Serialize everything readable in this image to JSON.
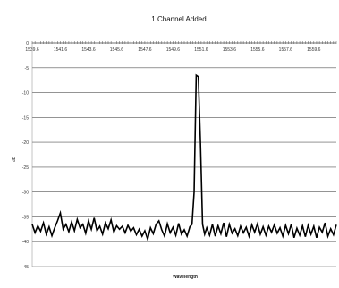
{
  "chart_data": {
    "type": "line",
    "title": "1 Channel Added",
    "xlabel": "Wavelength",
    "ylabel": "dB",
    "xlim": [
      1539.6,
      1561.2
    ],
    "ylim": [
      -45,
      0
    ],
    "xticks": [
      1539.6,
      1541.6,
      1543.6,
      1545.6,
      1547.6,
      1549.6,
      1551.6,
      1553.6,
      1555.6,
      1557.6,
      1559.6
    ],
    "xtick_labels": [
      "1539.6",
      "1541.6",
      "1543.6",
      "1545.6",
      "1547.6",
      "1549.6",
      "1551.6",
      "1553.6",
      "1555.6",
      "1557.6",
      "1559.6"
    ],
    "yticks": [
      0,
      -5,
      -10,
      -15,
      -20,
      -25,
      -30,
      -35,
      -40,
      -45
    ],
    "ytick_labels": [
      "0",
      "-5",
      "-10",
      "-15",
      "-20",
      "-25",
      "-30",
      "-35",
      "-40",
      "-45"
    ],
    "grid": true,
    "series": [
      {
        "color": "#000000",
        "x": [
          1539.6,
          1539.8,
          1540.0,
          1540.2,
          1540.4,
          1540.6,
          1540.8,
          1541.0,
          1541.2,
          1541.4,
          1541.6,
          1541.8,
          1542.0,
          1542.2,
          1542.4,
          1542.6,
          1542.8,
          1543.0,
          1543.2,
          1543.4,
          1543.6,
          1543.8,
          1544.0,
          1544.2,
          1544.4,
          1544.6,
          1544.8,
          1545.0,
          1545.2,
          1545.4,
          1545.6,
          1545.8,
          1546.0,
          1546.2,
          1546.4,
          1546.6,
          1546.8,
          1547.0,
          1547.2,
          1547.4,
          1547.6,
          1547.8,
          1548.0,
          1548.2,
          1548.4,
          1548.6,
          1548.8,
          1549.0,
          1549.2,
          1549.4,
          1549.6,
          1549.8,
          1550.0,
          1550.2,
          1550.4,
          1550.6,
          1550.8,
          1550.95,
          1551.1,
          1551.25,
          1551.4,
          1551.55,
          1551.7,
          1551.85,
          1552.0,
          1552.2,
          1552.4,
          1552.6,
          1552.8,
          1553.0,
          1553.2,
          1553.4,
          1553.6,
          1553.8,
          1554.0,
          1554.2,
          1554.4,
          1554.6,
          1554.8,
          1555.0,
          1555.2,
          1555.4,
          1555.6,
          1555.8,
          1556.0,
          1556.2,
          1556.4,
          1556.6,
          1556.8,
          1557.0,
          1557.2,
          1557.4,
          1557.6,
          1557.8,
          1558.0,
          1558.2,
          1558.4,
          1558.6,
          1558.8,
          1559.0,
          1559.2,
          1559.4,
          1559.6,
          1559.8,
          1560.0,
          1560.2,
          1560.4,
          1560.6,
          1560.8,
          1561.0,
          1561.2
        ],
        "y": [
          -36.5,
          -38.2,
          -36.8,
          -37.9,
          -36.2,
          -38.5,
          -37.0,
          -38.8,
          -37.2,
          -35.8,
          -34.2,
          -37.5,
          -36.5,
          -38.0,
          -36.0,
          -37.8,
          -35.5,
          -37.2,
          -36.5,
          -38.3,
          -35.8,
          -37.5,
          -35.2,
          -37.8,
          -36.9,
          -38.5,
          -36.2,
          -37.4,
          -35.6,
          -38.1,
          -36.8,
          -37.5,
          -36.9,
          -38.2,
          -36.7,
          -37.9,
          -37.2,
          -38.6,
          -37.5,
          -38.9,
          -37.8,
          -39.5,
          -37.2,
          -38.4,
          -36.5,
          -35.8,
          -37.6,
          -38.9,
          -36.4,
          -38.2,
          -37.1,
          -38.7,
          -36.3,
          -38.5,
          -37.6,
          -38.9,
          -37.0,
          -36.5,
          -30.0,
          -6.5,
          -6.8,
          -20.0,
          -36.5,
          -38.5,
          -37.2,
          -38.7,
          -36.5,
          -38.9,
          -36.8,
          -38.4,
          -36.2,
          -39.0,
          -36.5,
          -38.3,
          -37.4,
          -38.8,
          -36.9,
          -38.2,
          -37.1,
          -38.9,
          -36.6,
          -38.1,
          -36.4,
          -38.5,
          -37.0,
          -38.7,
          -36.9,
          -38.1,
          -36.6,
          -38.3,
          -37.2,
          -38.9,
          -36.7,
          -38.4,
          -36.5,
          -39.2,
          -37.3,
          -38.7,
          -36.8,
          -39.0,
          -36.7,
          -38.5,
          -36.9,
          -39.2,
          -37.1,
          -38.1,
          -36.2,
          -38.9,
          -37.4,
          -38.6,
          -36.6
        ]
      }
    ]
  }
}
